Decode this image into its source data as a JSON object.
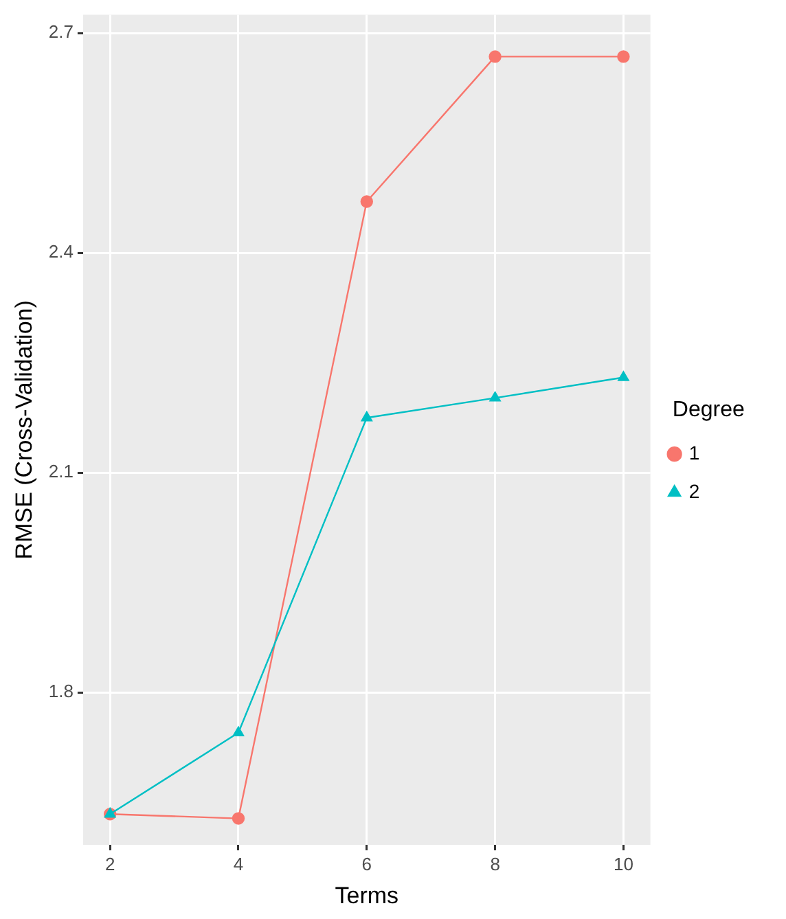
{
  "chart_data": {
    "type": "line",
    "xlabel": "Terms",
    "ylabel": "RMSE (Cross-Validation)",
    "legend_title": "Degree",
    "x": [
      2,
      4,
      6,
      8,
      10
    ],
    "series": [
      {
        "name": "1",
        "color": "#f8766d",
        "marker": "circle",
        "values": [
          1.634,
          1.628,
          2.47,
          2.668,
          2.668
        ]
      },
      {
        "name": "2",
        "color": "#00bfc4",
        "marker": "triangle",
        "values": [
          1.634,
          1.745,
          2.175,
          2.202,
          2.23
        ]
      }
    ],
    "xlim": [
      1.58,
      10.42
    ],
    "xticks": [
      2,
      4,
      6,
      8,
      10
    ],
    "ylim": [
      1.592,
      2.725
    ],
    "yticks": [
      {
        "value": 1.8,
        "label": "1.8"
      },
      {
        "value": 2.1,
        "label": "2.1"
      },
      {
        "value": 2.4,
        "label": "2.4"
      },
      {
        "value": 2.7,
        "label": "2.7"
      }
    ],
    "grid": true,
    "legend": "right",
    "line_style": "solid"
  }
}
